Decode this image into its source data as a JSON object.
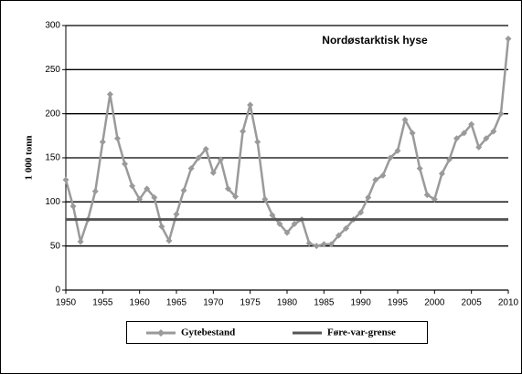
{
  "chart_data": {
    "type": "line",
    "title": "Nordøstarktisk  hyse",
    "ylabel": "1 000 tonn",
    "x": [
      1950,
      1951,
      1952,
      1953,
      1954,
      1955,
      1956,
      1957,
      1958,
      1959,
      1960,
      1961,
      1962,
      1963,
      1964,
      1965,
      1966,
      1967,
      1968,
      1969,
      1970,
      1971,
      1972,
      1973,
      1974,
      1975,
      1976,
      1977,
      1978,
      1979,
      1980,
      1981,
      1982,
      1983,
      1984,
      1985,
      1986,
      1987,
      1988,
      1989,
      1990,
      1991,
      1992,
      1993,
      1994,
      1995,
      1996,
      1997,
      1998,
      1999,
      2000,
      2001,
      2002,
      2003,
      2004,
      2005,
      2006,
      2007,
      2008,
      2009,
      2010
    ],
    "series": [
      {
        "name": "Gytebestand",
        "color": "#9a9a9a",
        "marker": "diamond",
        "values": [
          125,
          95,
          55,
          80,
          112,
          168,
          222,
          172,
          143,
          118,
          103,
          115,
          105,
          72,
          56,
          86,
          113,
          138,
          150,
          160,
          133,
          148,
          115,
          106,
          180,
          210,
          168,
          103,
          85,
          75,
          65,
          75,
          80,
          53,
          50,
          52,
          52,
          62,
          70,
          80,
          88,
          105,
          125,
          130,
          150,
          158,
          193,
          178,
          138,
          108,
          103,
          132,
          148,
          172,
          178,
          188,
          162,
          172,
          180,
          200,
          285
        ]
      },
      {
        "name": "Føre-var-grense",
        "color": "#555555",
        "x": [
          1950,
          2010
        ],
        "values": [
          80,
          80
        ]
      }
    ],
    "xlim": [
      1950,
      2010
    ],
    "xticks": [
      1950,
      1955,
      1960,
      1965,
      1970,
      1975,
      1980,
      1985,
      1990,
      1995,
      2000,
      2005,
      2010
    ],
    "ylim": [
      0,
      300
    ],
    "yticks": [
      0,
      50,
      100,
      150,
      200,
      250,
      300
    ],
    "grid": true,
    "legend": "bottom"
  }
}
